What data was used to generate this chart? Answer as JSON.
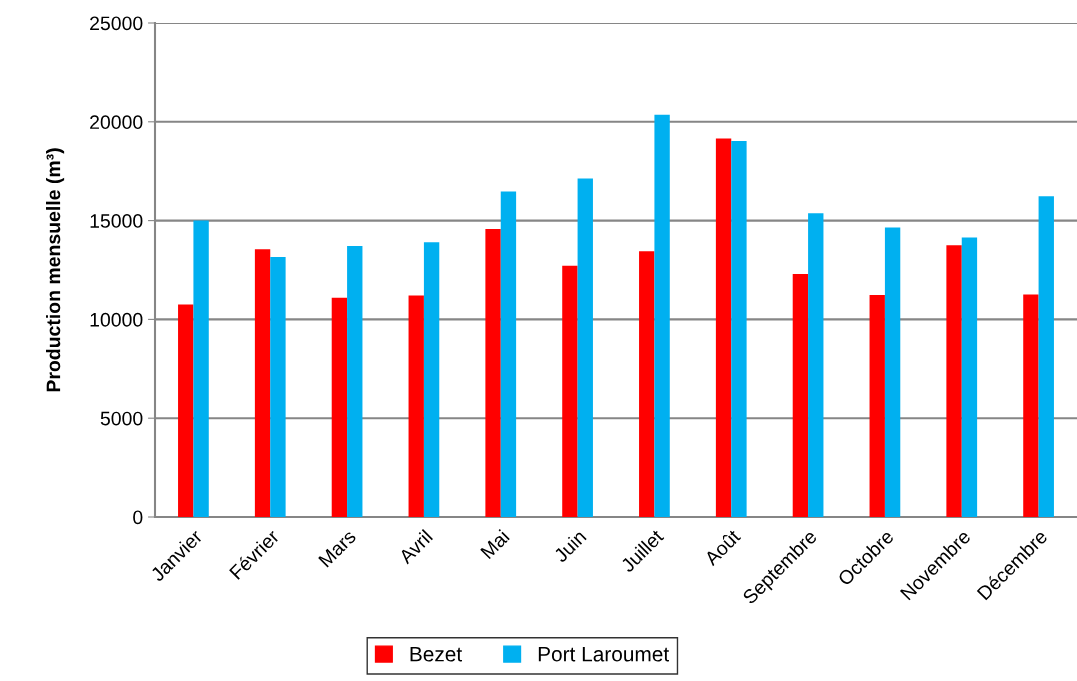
{
  "chart_data": {
    "type": "bar",
    "ylabel": "Production mensuelle (m³)",
    "categories": [
      "Janvier",
      "Février",
      "Mars",
      "Avril",
      "Mai",
      "Juin",
      "Juillet",
      "Août",
      "Septembre",
      "Octobre",
      "Novembre",
      "Décembre"
    ],
    "series": [
      {
        "name": "Bezet",
        "color": "#ff0000",
        "values": [
          10750,
          13550,
          11090,
          11210,
          14580,
          12710,
          13450,
          19150,
          12300,
          11240,
          13750,
          11260
        ]
      },
      {
        "name": "Port Laroumet",
        "color": "#00b0f0",
        "values": [
          15000,
          13160,
          13720,
          13900,
          16470,
          17130,
          20360,
          19030,
          15370,
          14650,
          14140,
          16230
        ]
      }
    ],
    "ylim": [
      0,
      25000
    ],
    "yticks": [
      0,
      5000,
      10000,
      15000,
      20000,
      25000
    ],
    "grid": "y",
    "legend": "bottom"
  }
}
